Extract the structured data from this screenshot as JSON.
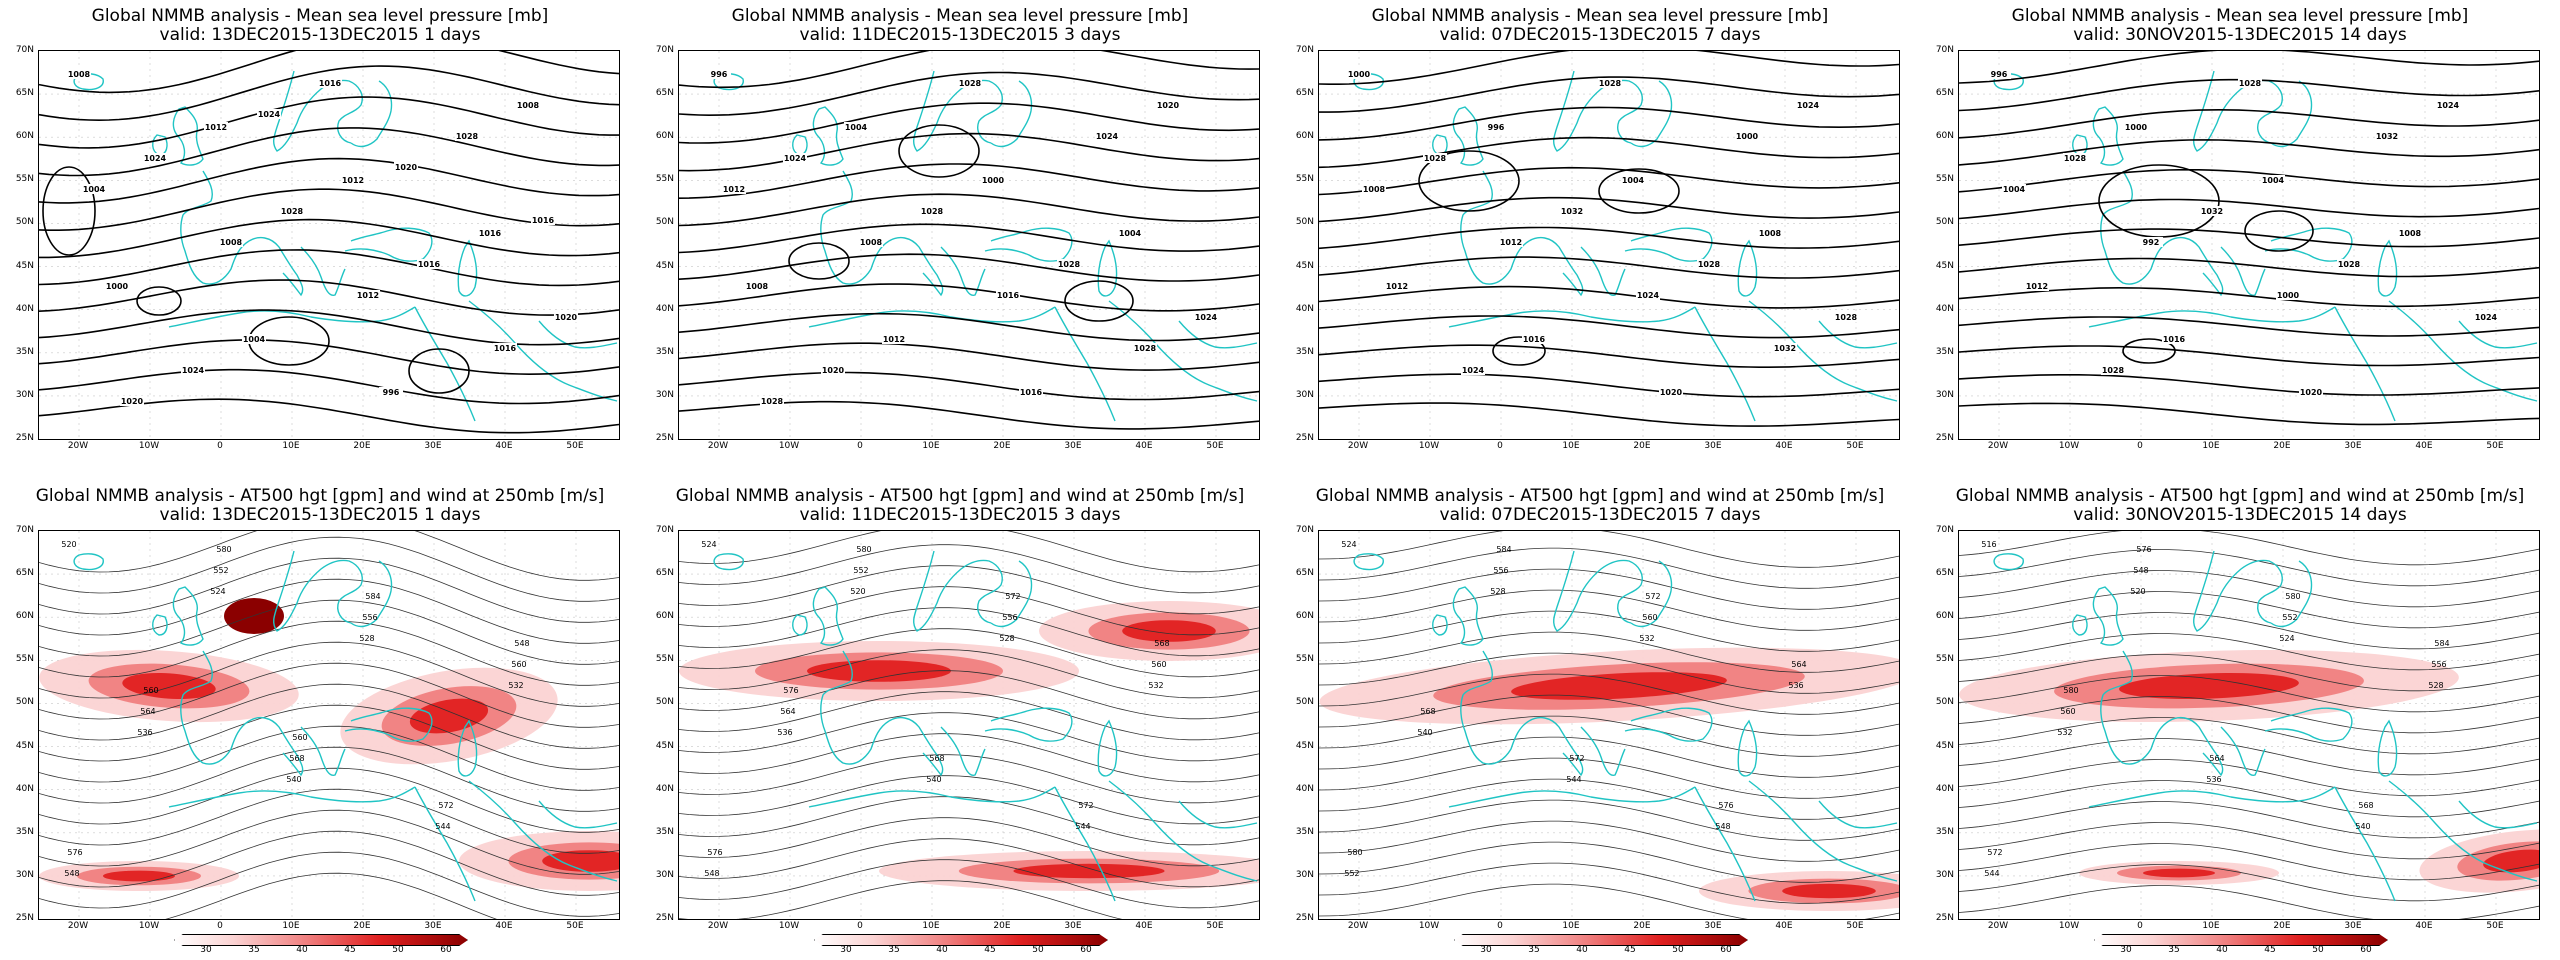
{
  "panels": [
    {
      "title": "Global NMMB analysis - Mean sea level pressure [mb]",
      "subtitle": "valid: 13DEC2015-13DEC2015   1 days",
      "type": "mslp"
    },
    {
      "title": "Global NMMB analysis - Mean sea level pressure [mb]",
      "subtitle": "valid: 11DEC2015-13DEC2015   3 days",
      "type": "mslp"
    },
    {
      "title": "Global NMMB analysis - Mean sea level pressure [mb]",
      "subtitle": "valid: 07DEC2015-13DEC2015   7 days",
      "type": "mslp"
    },
    {
      "title": "Global NMMB analysis - Mean sea level pressure [mb]",
      "subtitle": "valid: 30NOV2015-13DEC2015   14 days",
      "type": "mslp"
    },
    {
      "title": "Global NMMB analysis - AT500 hgt [gpm] and wind at 250mb [m/s]",
      "subtitle": "valid: 13DEC2015-13DEC2015   1 days",
      "type": "hgt"
    },
    {
      "title": "Global NMMB analysis - AT500 hgt [gpm] and wind at 250mb [m/s]",
      "subtitle": "valid: 11DEC2015-13DEC2015   3 days",
      "type": "hgt"
    },
    {
      "title": "Global NMMB analysis - AT500 hgt [gpm] and wind at 250mb [m/s]",
      "subtitle": "valid: 07DEC2015-13DEC2015   7 days",
      "type": "hgt"
    },
    {
      "title": "Global NMMB analysis - AT500 hgt [gpm] and wind at 250mb [m/s]",
      "subtitle": "valid: 30NOV2015-13DEC2015   14 days",
      "type": "hgt"
    }
  ],
  "lat_labels": [
    "70N",
    "65N",
    "60N",
    "55N",
    "50N",
    "45N",
    "40N",
    "35N",
    "30N",
    "25N"
  ],
  "lon_labels": [
    "20W",
    "10W",
    "0",
    "10E",
    "20E",
    "30E",
    "40E",
    "50E"
  ],
  "colorbar_labels": [
    "30",
    "35",
    "40",
    "45",
    "50",
    "60"
  ],
  "colors": {
    "coast": "#20c4c4",
    "contour": "#000000",
    "wind_light": "#fbd3d3",
    "wind_mid": "#f08080",
    "wind_strong": "#e02020",
    "wind_max": "#8b0000"
  },
  "mslp_labels": [
    [
      "1008",
      "1012",
      "1012",
      "1016",
      "1000",
      "1004",
      "996",
      "1008",
      "1024",
      "1028",
      "1016",
      "1020",
      "1024",
      "1016",
      "1028",
      "1004",
      "1008",
      "1012",
      "1016",
      "1020",
      "1024",
      "1020",
      "1016"
    ],
    [
      "996",
      "1004",
      "1000",
      "1004",
      "1008",
      "1012",
      "1016",
      "1020",
      "1024",
      "1028",
      "1028",
      "1024",
      "1020",
      "1028",
      "1024",
      "1012",
      "1008",
      "1016",
      "1028",
      "1028"
    ],
    [
      "1000",
      "996",
      "1004",
      "1008",
      "1012",
      "1016",
      "1020",
      "1024",
      "1028",
      "1032",
      "1028",
      "1028",
      "1024",
      "1028",
      "1000",
      "1008",
      "1012",
      "1024",
      "1032"
    ],
    [
      "996",
      "1000",
      "1004",
      "1008",
      "1012",
      "1016",
      "1020",
      "1024",
      "1028",
      "1032",
      "1028",
      "1024",
      "1028",
      "1028",
      "1032",
      "1004",
      "992",
      "1000"
    ]
  ],
  "hgt_labels": [
    [
      "520",
      "524",
      "528",
      "532",
      "536",
      "540",
      "544",
      "548",
      "552",
      "556",
      "560",
      "564",
      "568",
      "572",
      "576",
      "580",
      "584",
      "548",
      "560",
      "560"
    ],
    [
      "524",
      "520",
      "528",
      "532",
      "536",
      "540",
      "544",
      "548",
      "552",
      "556",
      "560",
      "564",
      "568",
      "572",
      "576",
      "580",
      "572",
      "568",
      "576"
    ],
    [
      "524",
      "528",
      "532",
      "536",
      "540",
      "544",
      "548",
      "552",
      "556",
      "560",
      "564",
      "568",
      "572",
      "576",
      "580",
      "584",
      "572"
    ],
    [
      "516",
      "520",
      "524",
      "528",
      "532",
      "536",
      "540",
      "544",
      "548",
      "552",
      "556",
      "560",
      "564",
      "568",
      "572",
      "576",
      "580",
      "584",
      "580"
    ]
  ]
}
